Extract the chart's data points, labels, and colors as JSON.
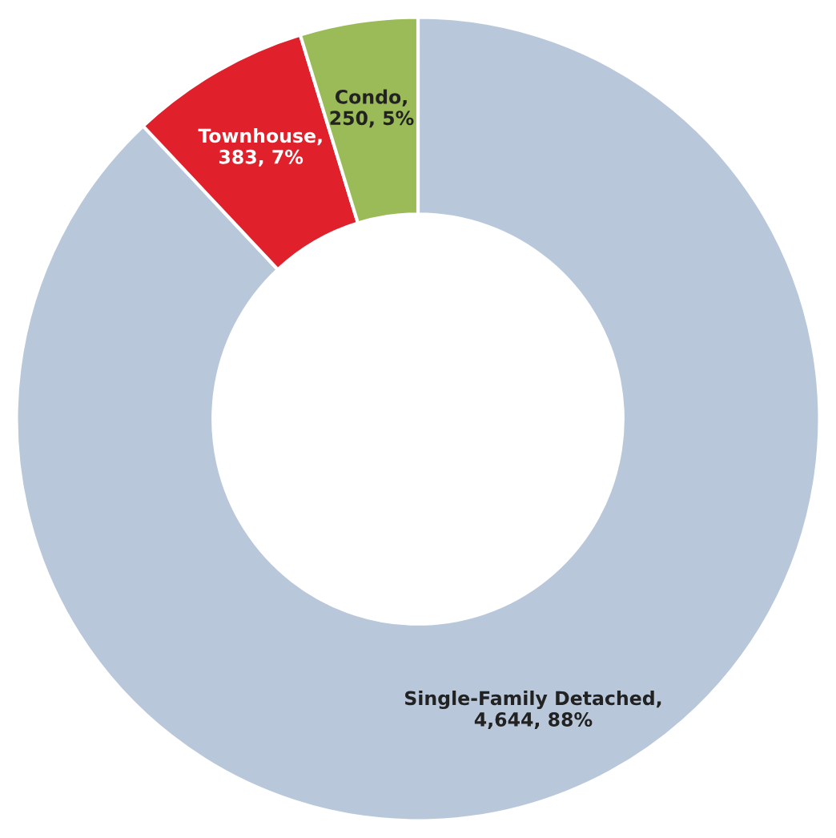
{
  "chart_data": {
    "type": "donut",
    "categories": [
      "Single-Family Detached",
      "Townhouse",
      "Condo"
    ],
    "values": [
      4644,
      383,
      250
    ],
    "value_labels": [
      ", 4,644, 88%",
      ", 383, 7%",
      ", 250, 5%"
    ],
    "colors": [
      "#b8c8da",
      "#e0202a",
      "#9bbb59"
    ],
    "legend": false
  }
}
